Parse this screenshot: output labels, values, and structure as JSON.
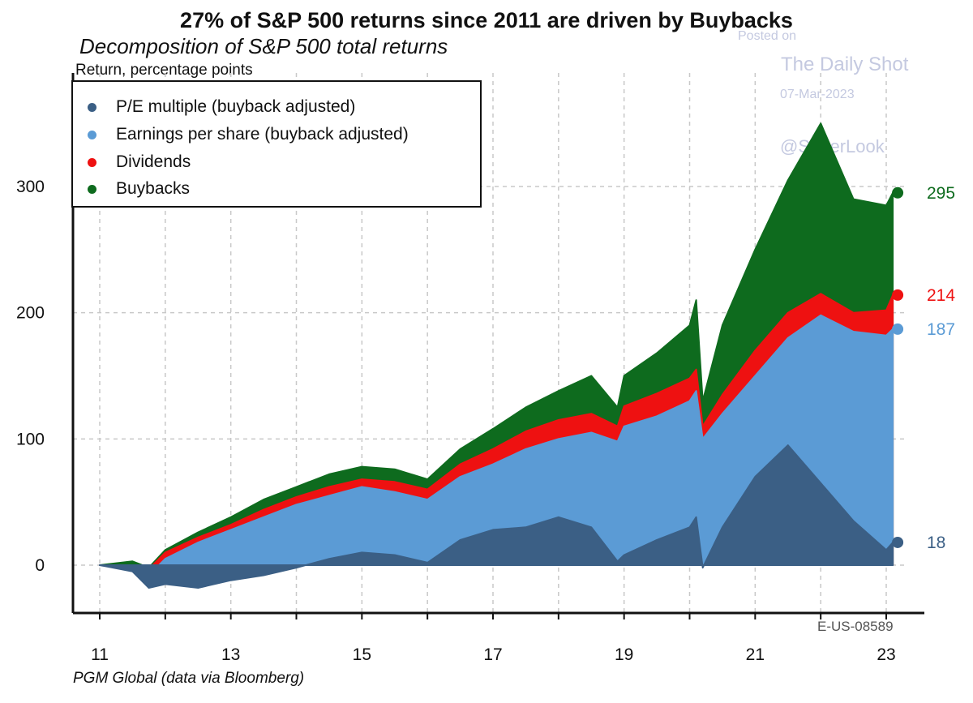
{
  "header": {
    "title": "27% of S&P 500 returns since 2011 are driven by Buybacks",
    "subtitle": "Decomposition of S&P 500 total returns",
    "unit": "Return, percentage points"
  },
  "footer": {
    "source": "PGM Global (data via Bloomberg)",
    "code": "E-US-08589"
  },
  "watermark": {
    "posted_on": "Posted on",
    "site": "The Daily Shot",
    "date": "07-Mar-2023",
    "handle": "@SoberLook"
  },
  "chart_data": {
    "type": "area",
    "title": "27% of S&P 500 returns since 2011 are driven by Buybacks",
    "subtitle": "Decomposition of S&P 500 total returns",
    "ylabel": "Return, percentage points",
    "xlabel": "",
    "xlim": [
      2011,
      2023.15
    ],
    "ylim": [
      -38,
      380
    ],
    "xticks": [
      11,
      13,
      15,
      17,
      19,
      21,
      23
    ],
    "yticks": [
      0,
      100,
      200,
      300
    ],
    "grid": true,
    "legend_position": "top-left",
    "stacked": true,
    "x": [
      2011.0,
      2011.5,
      2011.75,
      2012.0,
      2012.5,
      2013.0,
      2013.5,
      2014.0,
      2014.5,
      2015.0,
      2015.5,
      2016.0,
      2016.5,
      2017.0,
      2017.5,
      2018.0,
      2018.5,
      2018.9,
      2019.0,
      2019.5,
      2020.0,
      2020.1,
      2020.2,
      2020.5,
      2021.0,
      2021.5,
      2022.0,
      2022.5,
      2023.0,
      2023.1
    ],
    "series": [
      {
        "name": "P/E multiple (buyback adjusted)",
        "color": "#3b5f85",
        "values": [
          0,
          -5,
          -18,
          -15,
          -18,
          -12,
          -8,
          -2,
          5,
          10,
          8,
          2,
          20,
          28,
          30,
          38,
          30,
          3,
          8,
          20,
          30,
          38,
          -2,
          30,
          70,
          95,
          65,
          35,
          12,
          18
        ]
      },
      {
        "name": "Earnings per share (buyback adjusted)",
        "color": "#5b9bd5",
        "values": [
          0,
          -2,
          -8,
          5,
          18,
          28,
          38,
          48,
          55,
          62,
          58,
          52,
          70,
          80,
          92,
          100,
          105,
          98,
          110,
          118,
          130,
          138,
          100,
          120,
          150,
          180,
          198,
          185,
          182,
          187
        ]
      },
      {
        "name": "Dividends",
        "color": "#ee1111",
        "values": [
          0,
          0,
          -3,
          10,
          22,
          32,
          44,
          54,
          62,
          68,
          66,
          60,
          80,
          92,
          106,
          115,
          120,
          110,
          126,
          136,
          148,
          155,
          110,
          135,
          170,
          200,
          215,
          200,
          202,
          214
        ]
      },
      {
        "name": "Buybacks",
        "color": "#0e6b1e",
        "values": [
          0,
          3,
          -2,
          12,
          26,
          38,
          52,
          62,
          72,
          78,
          76,
          68,
          92,
          108,
          125,
          138,
          150,
          125,
          150,
          168,
          190,
          210,
          130,
          190,
          250,
          305,
          350,
          290,
          285,
          295
        ]
      }
    ],
    "end_labels": [
      {
        "series": "Buybacks",
        "value": 295,
        "color": "#0e6b1e"
      },
      {
        "series": "Dividends",
        "value": 214,
        "color": "#ee1111"
      },
      {
        "series": "Earnings per share (buyback adjusted)",
        "value": 187,
        "color": "#5b9bd5"
      },
      {
        "series": "P/E multiple (buyback adjusted)",
        "value": 18,
        "color": "#3b5f85"
      }
    ]
  }
}
